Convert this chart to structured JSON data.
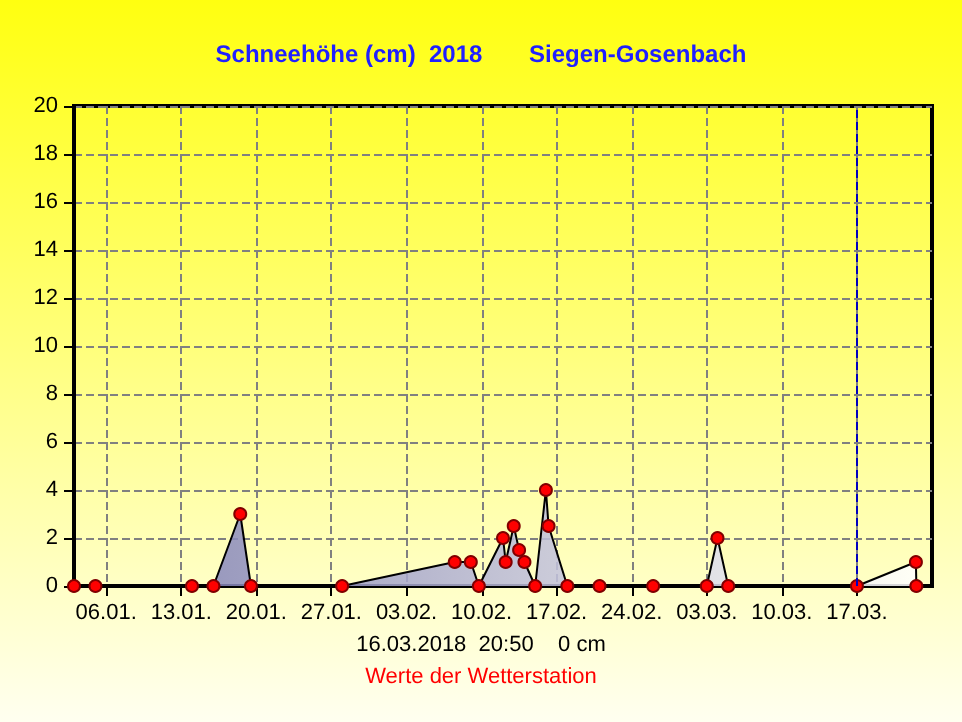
{
  "chart_data": {
    "type": "area",
    "title": "Schneehöhe (cm)  2018       Siegen-Gosenbach",
    "x": [
      "2018-01-03",
      "2018-01-05",
      "2018-01-14",
      "2018-01-16",
      "2018-01-18T12:00",
      "2018-01-19T12:00",
      "2018-01-28",
      "2018-02-07T12:00",
      "2018-02-09",
      "2018-02-09T18:00",
      "2018-02-12",
      "2018-02-12T06:00",
      "2018-02-13",
      "2018-02-13T12:00",
      "2018-02-14",
      "2018-02-15",
      "2018-02-16",
      "2018-02-16T06:00",
      "2018-02-18",
      "2018-02-21",
      "2018-02-26",
      "2018-03-03",
      "2018-03-04",
      "2018-03-05",
      "2018-03-17",
      "2018-03-22T12:00",
      "2018-03-22T13:00"
    ],
    "series": [
      {
        "color": "#7070b0",
        "values": [
          0,
          0,
          0,
          0,
          3,
          0,
          0,
          1,
          1,
          0,
          2,
          1,
          2.5,
          1.5,
          1,
          0,
          4,
          2.5,
          0,
          0,
          0,
          0,
          2,
          0,
          0,
          1,
          0
        ]
      }
    ],
    "xlim": [
      "2018-01-03",
      "2018-03-24"
    ],
    "xticks": [
      {
        "value": "2018-01-06",
        "label": "06.01."
      },
      {
        "value": "2018-01-13",
        "label": "13.01."
      },
      {
        "value": "2018-01-20",
        "label": "20.01."
      },
      {
        "value": "2018-01-27",
        "label": "27.01."
      },
      {
        "value": "2018-02-03",
        "label": "03.02."
      },
      {
        "value": "2018-02-10",
        "label": "10.02."
      },
      {
        "value": "2018-02-17",
        "label": "17.02."
      },
      {
        "value": "2018-02-24",
        "label": "24.02."
      },
      {
        "value": "2018-03-03",
        "label": "03.03."
      },
      {
        "value": "2018-03-10",
        "label": "10.03."
      },
      {
        "value": "2018-03-17",
        "label": "17.03."
      }
    ],
    "ylim": [
      0,
      20
    ],
    "yticks": [
      0,
      2,
      4,
      6,
      8,
      10,
      12,
      14,
      16,
      18,
      20
    ],
    "grid": true,
    "marker": "circle",
    "ref_lines": [
      {
        "axis": "x",
        "value": "2018-03-16T20:50",
        "color": "#0000c0",
        "line_style": "dashed"
      }
    ],
    "annotations": [
      "16.03.2018  20:50    0 cm",
      "Werte der Wetterstation"
    ]
  }
}
